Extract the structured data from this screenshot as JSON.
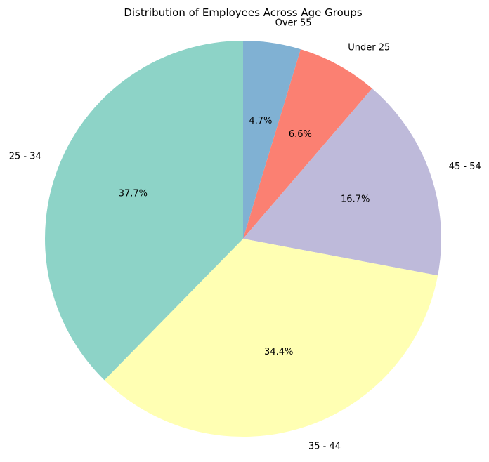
{
  "chart_data": {
    "type": "pie",
    "title": "Distribution of Employees Across Age Groups",
    "start_angle_deg": 90,
    "direction": "clockwise",
    "slices": [
      {
        "label": "Over 55",
        "value": 4.7,
        "pct_label": "4.7%",
        "color": "#80b1d3"
      },
      {
        "label": "Under 25",
        "value": 6.6,
        "pct_label": "6.6%",
        "color": "#fb8072"
      },
      {
        "label": "45 - 54",
        "value": 16.7,
        "pct_label": "16.7%",
        "color": "#bebada"
      },
      {
        "label": "35 - 44",
        "value": 34.4,
        "pct_label": "34.4%",
        "color": "#ffffb3"
      },
      {
        "label": "25 - 34",
        "value": 37.7,
        "pct_label": "37.7%",
        "color": "#8dd3c7"
      }
    ]
  }
}
